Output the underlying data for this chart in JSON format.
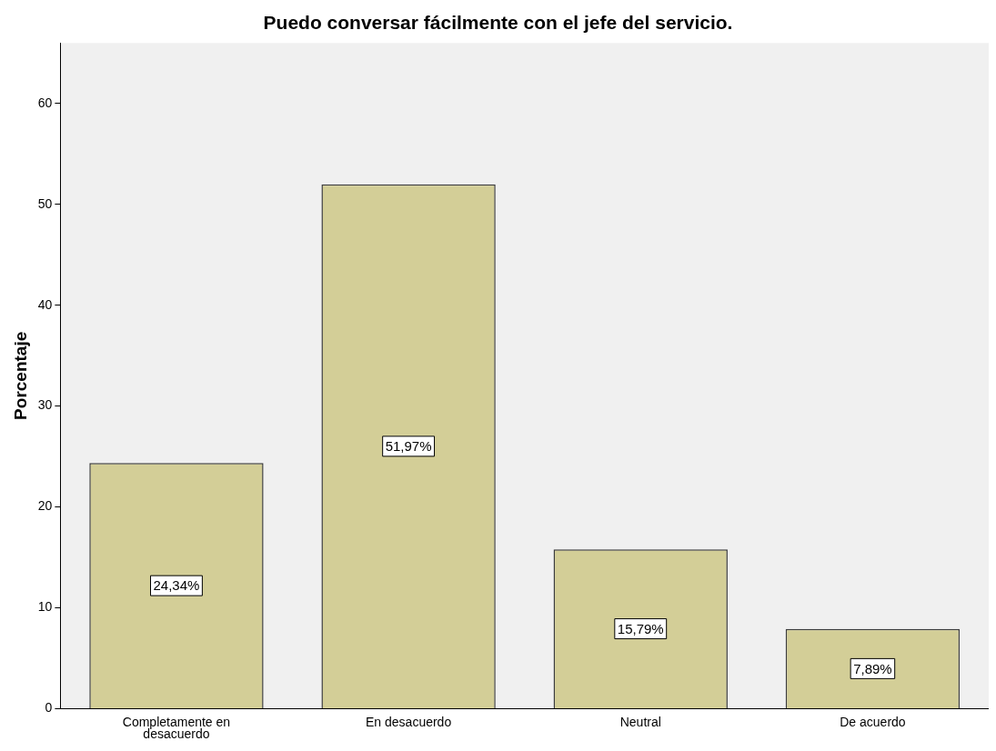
{
  "chart_data": {
    "type": "bar",
    "title": "Puedo conversar fácilmente con el jefe del servicio.",
    "ylabel": "Porcentaje",
    "categories": [
      "Completamente en desacuerdo",
      "En desacuerdo",
      "Neutral",
      "De acuerdo"
    ],
    "values": [
      24.34,
      51.97,
      15.79,
      7.89
    ],
    "value_labels": [
      "24,34%",
      "51,97%",
      "15,79%",
      "7,89%"
    ],
    "color": "#d3ce97",
    "ylim": [
      0,
      66
    ],
    "yticks": [
      0,
      10,
      20,
      30,
      40,
      50,
      60
    ],
    "grid": false,
    "legend": false
  }
}
